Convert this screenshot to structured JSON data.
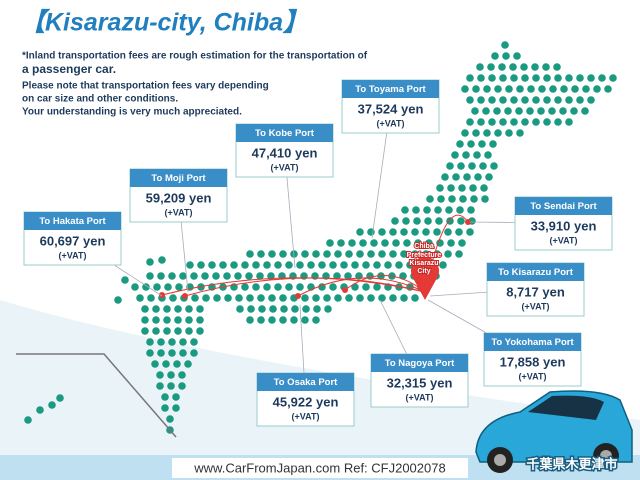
{
  "header": {
    "title": "【Kisarazu-city, Chiba】",
    "notes": [
      "*Inland transportation fees are rough estimation for the transportation of",
      "a passenger car.",
      "Please note that transportation fees vary depending",
      "on car size and other conditions.",
      "Your understanding is very much appreciated."
    ]
  },
  "origin": {
    "lines": [
      "Chiba",
      "Prefecture",
      "Kisarazu",
      "City"
    ]
  },
  "ports": [
    {
      "name": "To Toyama Port",
      "price": "37,524 yen",
      "tax": "(+VAT)"
    },
    {
      "name": "To Kobe Port",
      "price": "47,410 yen",
      "tax": "(+VAT)"
    },
    {
      "name": "To Moji Port",
      "price": "59,209 yen",
      "tax": "(+VAT)"
    },
    {
      "name": "To Hakata Port",
      "price": "60,697 yen",
      "tax": "(+VAT)"
    },
    {
      "name": "To Sendai Port",
      "price": "33,910 yen",
      "tax": "(+VAT)"
    },
    {
      "name": "To Kisarazu Port",
      "price": "8,717 yen",
      "tax": "(+VAT)"
    },
    {
      "name": "To Yokohama Port",
      "price": "17,858 yen",
      "tax": "(+VAT)"
    },
    {
      "name": "To Nagoya Port",
      "price": "32,315 yen",
      "tax": "(+VAT)"
    },
    {
      "name": "To Osaka Port",
      "price": "45,922 yen",
      "tax": "(+VAT)"
    }
  ],
  "footer": {
    "ref": "www.CarFromJapan.com Ref: CFJ2002078",
    "city": "千葉県木更津市"
  }
}
